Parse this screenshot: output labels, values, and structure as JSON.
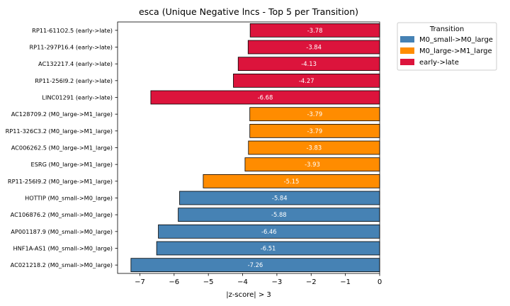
{
  "chart_data": {
    "type": "bar",
    "orientation": "horizontal",
    "title": "esca (Unique Negative lncs - Top 5 per Transition)",
    "xlabel": "|z-score| > 3",
    "ylabel": "",
    "xlim": [
      -7.65,
      0
    ],
    "xticks": [
      -7,
      -6,
      -5,
      -4,
      -3,
      -2,
      -1,
      0
    ],
    "grid": false,
    "legend": {
      "title": "Transition",
      "placement": "outside-upper-right",
      "entries": [
        {
          "name": "M0_small->M0_large",
          "color": "#4682b4"
        },
        {
          "name": "M0_large->M1_large",
          "color": "#ff8c00"
        },
        {
          "name": "early->late",
          "color": "#dc143c"
        }
      ]
    },
    "bars": [
      {
        "label": "RP11-611O2.5 (early->late)",
        "value": -3.78,
        "text": "-3.78",
        "group": "early->late"
      },
      {
        "label": "RP11-297P16.4 (early->late)",
        "value": -3.84,
        "text": "-3.84",
        "group": "early->late"
      },
      {
        "label": "AC132217.4 (early->late)",
        "value": -4.13,
        "text": "-4.13",
        "group": "early->late"
      },
      {
        "label": "RP11-256I9.2 (early->late)",
        "value": -4.27,
        "text": "-4.27",
        "group": "early->late"
      },
      {
        "label": "LINC01291 (early->late)",
        "value": -6.68,
        "text": "-6.68",
        "group": "early->late"
      },
      {
        "label": "AC128709.2 (M0_large->M1_large)",
        "value": -3.79,
        "text": "-3.79",
        "group": "M0_large->M1_large"
      },
      {
        "label": "RP11-326C3.2 (M0_large->M1_large)",
        "value": -3.79,
        "text": "-3.79",
        "group": "M0_large->M1_large"
      },
      {
        "label": "AC006262.5 (M0_large->M1_large)",
        "value": -3.83,
        "text": "-3.83",
        "group": "M0_large->M1_large"
      },
      {
        "label": "ESRG (M0_large->M1_large)",
        "value": -3.93,
        "text": "-3.93",
        "group": "M0_large->M1_large"
      },
      {
        "label": "RP11-256I9.2 (M0_large->M1_large)",
        "value": -5.15,
        "text": "-5.15",
        "group": "M0_large->M1_large"
      },
      {
        "label": "HOTTIP (M0_small->M0_large)",
        "value": -5.84,
        "text": "-5.84",
        "group": "M0_small->M0_large"
      },
      {
        "label": "AC106876.2 (M0_small->M0_large)",
        "value": -5.88,
        "text": "-5.88",
        "group": "M0_small->M0_large"
      },
      {
        "label": "AP001187.9 (M0_small->M0_large)",
        "value": -6.46,
        "text": "-6.46",
        "group": "M0_small->M0_large"
      },
      {
        "label": "HNF1A-AS1 (M0_small->M0_large)",
        "value": -6.51,
        "text": "-6.51",
        "group": "M0_small->M0_large"
      },
      {
        "label": "AC021218.2 (M0_small->M0_large)",
        "value": -7.26,
        "text": "-7.26",
        "group": "M0_small->M0_large"
      }
    ]
  }
}
